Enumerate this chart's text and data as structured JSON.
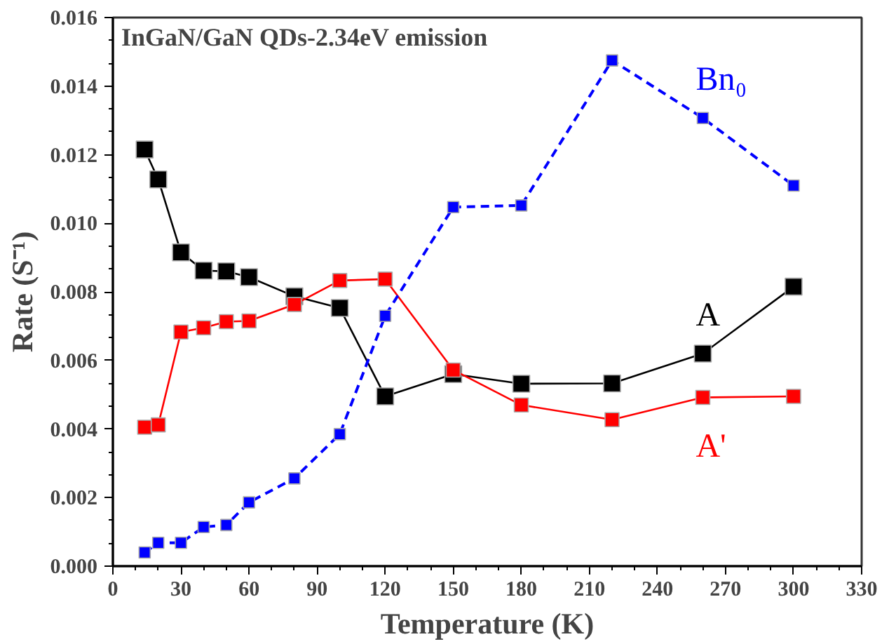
{
  "chart_data": {
    "type": "line",
    "title": "InGaN/GaN QDs-2.34eV emission",
    "xlabel": "Temperature (K)",
    "ylabel": "Rate (S⁻¹)",
    "x": [
      14,
      20,
      30,
      40,
      50,
      60,
      80,
      100,
      120,
      150,
      180,
      220,
      260,
      300
    ],
    "series": [
      {
        "name": "A",
        "color": "#000000",
        "line_style": "solid",
        "values": [
          0.01215,
          0.01128,
          0.00915,
          0.00862,
          0.0086,
          0.00843,
          0.00787,
          0.00753,
          0.00495,
          0.0056,
          0.00532,
          0.00533,
          0.0062,
          0.00815
        ]
      },
      {
        "name": "A'",
        "color": "#ff0000",
        "line_style": "solid",
        "values": [
          0.00405,
          0.00412,
          0.00683,
          0.00695,
          0.00713,
          0.00715,
          0.00763,
          0.00833,
          0.00837,
          0.00572,
          0.0047,
          0.00427,
          0.00492,
          0.00495
        ]
      },
      {
        "name": "Bn₀",
        "color": "#0000ff",
        "line_style": "dashed",
        "values": [
          0.0004,
          0.00068,
          0.00068,
          0.00114,
          0.0012,
          0.00186,
          0.00256,
          0.00385,
          0.0073,
          0.01047,
          0.01052,
          0.01475,
          0.01307,
          0.0111
        ]
      }
    ],
    "marker": "square",
    "grid": false,
    "xlim": [
      0,
      330
    ],
    "xticks": [
      0,
      30,
      60,
      90,
      120,
      150,
      180,
      210,
      240,
      270,
      300,
      330
    ],
    "ylim": [
      0,
      0.016
    ],
    "yticks": [
      {
        "value": 0,
        "label": "0.000"
      },
      {
        "value": 0.002,
        "label": "0.002"
      },
      {
        "value": 0.004,
        "label": "0.004"
      },
      {
        "value": 0.006,
        "label": "0.006"
      },
      {
        "value": 0.008,
        "label": "0.008"
      },
      {
        "value": 0.01,
        "label": "0.010"
      },
      {
        "value": 0.012,
        "label": "0.012"
      },
      {
        "value": 0.014,
        "label": "0.014"
      },
      {
        "value": 0.016,
        "label": "0.016"
      }
    ]
  }
}
